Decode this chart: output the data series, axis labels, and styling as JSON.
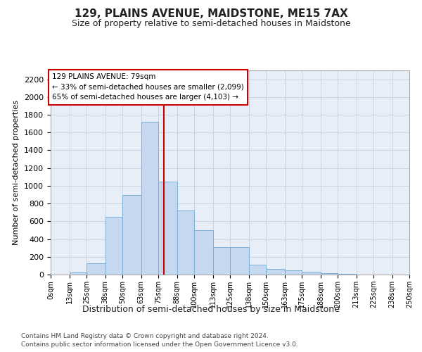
{
  "title": "129, PLAINS AVENUE, MAIDSTONE, ME15 7AX",
  "subtitle": "Size of property relative to semi-detached houses in Maidstone",
  "xlabel": "Distribution of semi-detached houses by size in Maidstone",
  "ylabel": "Number of semi-detached properties",
  "footnote1": "Contains HM Land Registry data © Crown copyright and database right 2024.",
  "footnote2": "Contains public sector information licensed under the Open Government Licence v3.0.",
  "bin_edges": [
    0,
    13,
    25,
    38,
    50,
    63,
    75,
    88,
    100,
    113,
    125,
    138,
    150,
    163,
    175,
    188,
    200,
    213,
    225,
    238,
    250
  ],
  "bar_heights": [
    0,
    25,
    125,
    650,
    900,
    1725,
    1050,
    725,
    500,
    310,
    310,
    115,
    65,
    45,
    30,
    15,
    5,
    2,
    1,
    0
  ],
  "bar_color": "#c5d8f0",
  "bar_edge_color": "#7aafd4",
  "grid_color": "#c8d4e8",
  "background_color": "#e8eef8",
  "red_line_x": 79,
  "annotation_text1": "129 PLAINS AVENUE: 79sqm",
  "annotation_text2": "← 33% of semi-detached houses are smaller (2,099)",
  "annotation_text3": "65% of semi-detached houses are larger (4,103) →",
  "annotation_box_color": "#ffffff",
  "annotation_box_edge": "#cc0000",
  "red_line_color": "#cc0000",
  "ylim": [
    0,
    2300
  ],
  "yticks": [
    0,
    200,
    400,
    600,
    800,
    1000,
    1200,
    1400,
    1600,
    1800,
    2000,
    2200
  ],
  "tick_labels": [
    "0sqm",
    "13sqm",
    "25sqm",
    "38sqm",
    "50sqm",
    "63sqm",
    "75sqm",
    "88sqm",
    "100sqm",
    "113sqm",
    "125sqm",
    "138sqm",
    "150sqm",
    "163sqm",
    "175sqm",
    "188sqm",
    "200sqm",
    "213sqm",
    "225sqm",
    "238sqm",
    "250sqm"
  ],
  "title_fontsize": 11,
  "subtitle_fontsize": 9,
  "ylabel_fontsize": 8,
  "xlabel_fontsize": 9
}
